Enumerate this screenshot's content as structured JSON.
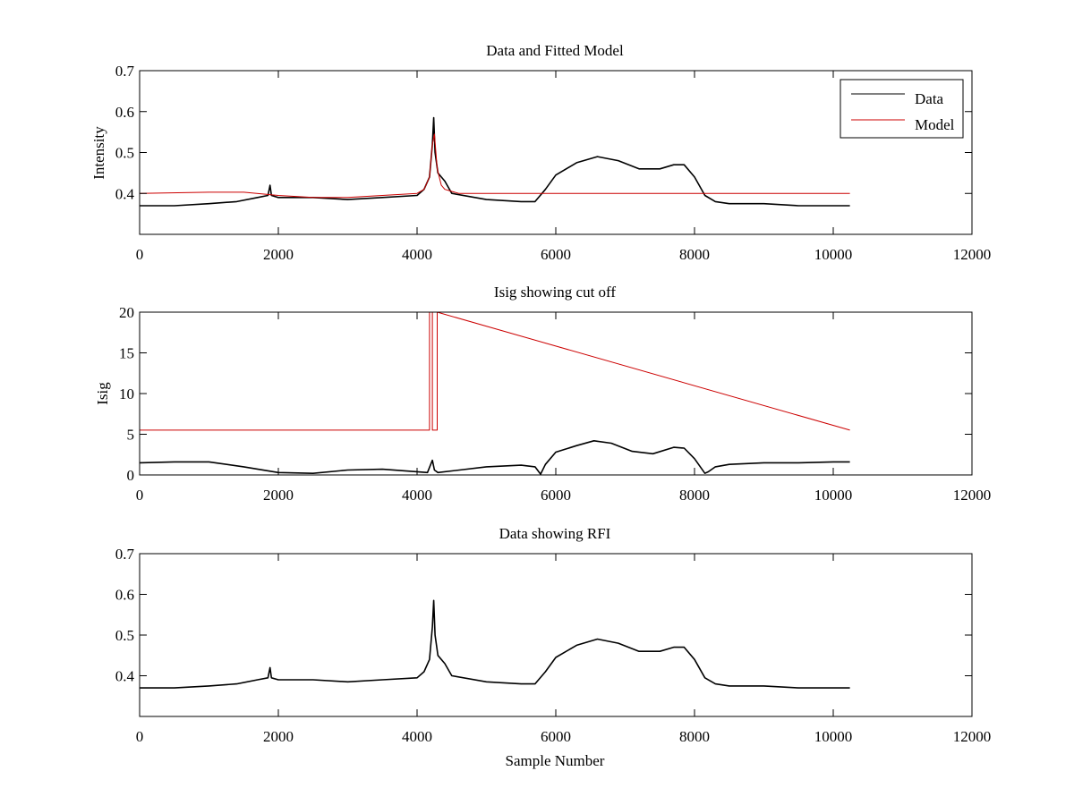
{
  "chart_data": [
    {
      "type": "line",
      "title": "Data and Fitted Model",
      "xlabel": "",
      "ylabel": "Intensity",
      "xlim": [
        0,
        12000
      ],
      "ylim": [
        0.3,
        0.7
      ],
      "xticks": [
        0,
        2000,
        4000,
        6000,
        8000,
        10000,
        12000
      ],
      "yticks": [
        0.4,
        0.5,
        0.6,
        0.7
      ],
      "grid": false,
      "legend": "top-right",
      "series": [
        {
          "name": "Data",
          "color": "#000000",
          "x": [
            0,
            500,
            1000,
            1400,
            1700,
            1850,
            1880,
            1900,
            2000,
            2500,
            3000,
            3500,
            4000,
            4100,
            4180,
            4220,
            4240,
            4260,
            4300,
            4400,
            4500,
            5000,
            5500,
            5700,
            5850,
            6000,
            6300,
            6600,
            6900,
            7200,
            7500,
            7700,
            7850,
            8000,
            8150,
            8300,
            8500,
            9000,
            9500,
            10000,
            10240
          ],
          "y": [
            0.37,
            0.37,
            0.375,
            0.38,
            0.39,
            0.395,
            0.42,
            0.395,
            0.39,
            0.39,
            0.385,
            0.39,
            0.395,
            0.41,
            0.44,
            0.52,
            0.585,
            0.5,
            0.45,
            0.43,
            0.4,
            0.385,
            0.38,
            0.38,
            0.41,
            0.445,
            0.475,
            0.49,
            0.48,
            0.46,
            0.46,
            0.47,
            0.47,
            0.44,
            0.395,
            0.38,
            0.375,
            0.375,
            0.37,
            0.37,
            0.37
          ]
        },
        {
          "name": "Model",
          "color": "#cc0000",
          "x": [
            0,
            1000,
            1500,
            2000,
            2500,
            3000,
            3500,
            4000,
            4100,
            4180,
            4220,
            4250,
            4290,
            4350,
            4400,
            4600,
            5000,
            8000,
            10240
          ],
          "y": [
            0.4,
            0.403,
            0.403,
            0.395,
            0.39,
            0.39,
            0.395,
            0.4,
            0.41,
            0.44,
            0.52,
            0.545,
            0.46,
            0.42,
            0.41,
            0.4,
            0.4,
            0.4,
            0.4
          ]
        }
      ]
    },
    {
      "type": "line",
      "title": "Isig showing cut off",
      "xlabel": "",
      "ylabel": "Isig",
      "xlim": [
        0,
        12000
      ],
      "ylim": [
        0,
        20
      ],
      "xticks": [
        0,
        2000,
        4000,
        6000,
        8000,
        10000,
        12000
      ],
      "yticks": [
        0,
        5,
        10,
        15,
        20
      ],
      "grid": false,
      "series": [
        {
          "color": "#000000",
          "x": [
            0,
            500,
            1000,
            1500,
            2000,
            2500,
            3000,
            3500,
            4000,
            4150,
            4220,
            4250,
            4300,
            4500,
            5000,
            5500,
            5700,
            5780,
            5850,
            6000,
            6300,
            6550,
            6800,
            7100,
            7400,
            7700,
            7850,
            8000,
            8150,
            8200,
            8300,
            8500,
            9000,
            9500,
            10000,
            10240
          ],
          "y": [
            1.5,
            1.6,
            1.6,
            1.0,
            0.3,
            0.2,
            0.6,
            0.7,
            0.4,
            0.3,
            1.8,
            0.6,
            0.3,
            0.5,
            1.0,
            1.2,
            1.0,
            0.1,
            1.3,
            2.8,
            3.6,
            4.2,
            3.9,
            2.9,
            2.6,
            3.4,
            3.3,
            2.0,
            0.2,
            0.4,
            1.0,
            1.3,
            1.5,
            1.5,
            1.6,
            1.6
          ]
        },
        {
          "color": "#cc0000",
          "x": [
            0,
            4180,
            4180,
            4220,
            4220,
            4290,
            4290,
            10240
          ],
          "y": [
            5.5,
            5.5,
            20,
            20,
            5.5,
            5.5,
            20,
            5.5
          ]
        }
      ]
    },
    {
      "type": "line",
      "title": "Data showing RFI",
      "xlabel": "Sample Number",
      "ylabel": "",
      "xlim": [
        0,
        12000
      ],
      "ylim": [
        0.3,
        0.7
      ],
      "xticks": [
        0,
        2000,
        4000,
        6000,
        8000,
        10000,
        12000
      ],
      "yticks": [
        0.4,
        0.5,
        0.6,
        0.7
      ],
      "grid": false,
      "series": [
        {
          "color": "#000000",
          "x": [
            0,
            500,
            1000,
            1400,
            1700,
            1850,
            1880,
            1900,
            2000,
            2500,
            3000,
            3500,
            4000,
            4100,
            4180,
            4220,
            4240,
            4260,
            4300,
            4400,
            4500,
            5000,
            5500,
            5700,
            5850,
            6000,
            6300,
            6600,
            6900,
            7200,
            7500,
            7700,
            7850,
            8000,
            8150,
            8300,
            8500,
            9000,
            9500,
            10000,
            10240
          ],
          "y": [
            0.37,
            0.37,
            0.375,
            0.38,
            0.39,
            0.395,
            0.42,
            0.395,
            0.39,
            0.39,
            0.385,
            0.39,
            0.395,
            0.41,
            0.44,
            0.52,
            0.585,
            0.5,
            0.45,
            0.43,
            0.4,
            0.385,
            0.38,
            0.38,
            0.41,
            0.445,
            0.475,
            0.49,
            0.48,
            0.46,
            0.46,
            0.47,
            0.47,
            0.44,
            0.395,
            0.38,
            0.375,
            0.375,
            0.37,
            0.37,
            0.37
          ]
        }
      ]
    }
  ]
}
